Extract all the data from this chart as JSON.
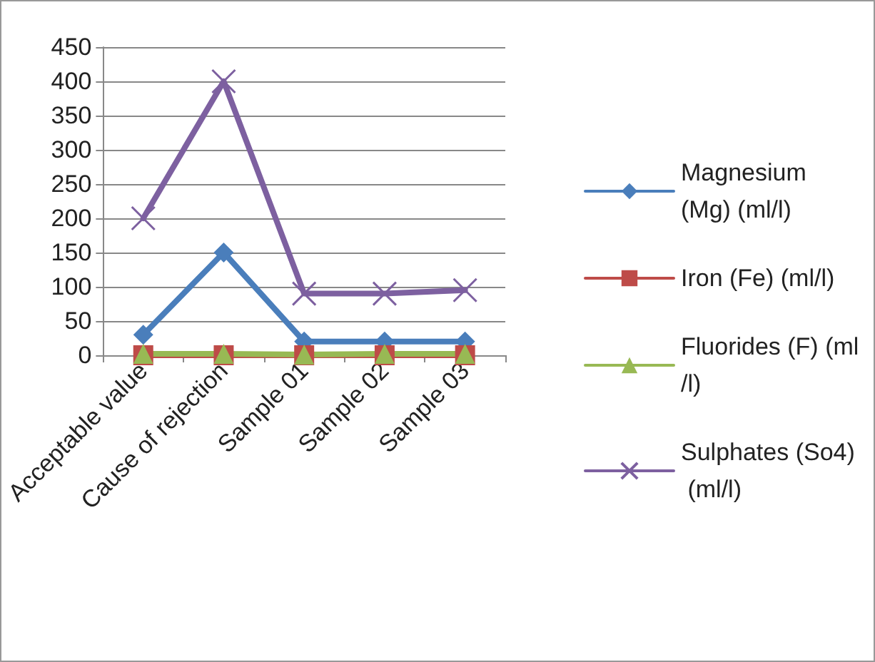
{
  "chart_data": {
    "type": "line",
    "categories": [
      "Acceptable value",
      "Cause of rejection",
      "Sample 01",
      "Sample 02",
      "Sample 03"
    ],
    "series": [
      {
        "name": "Magnesium (Mg) (ml/l)",
        "color": "#4a7ebb",
        "marker": "diamond",
        "values": [
          30,
          150,
          20,
          20,
          20
        ]
      },
      {
        "name": "Iron (Fe) (ml/l)",
        "color": "#be4b48",
        "marker": "square",
        "values": [
          0,
          0,
          0,
          0,
          0
        ]
      },
      {
        "name": "Fluorides (F) (ml/l)",
        "color": "#98b954",
        "marker": "triangle",
        "values": [
          2,
          2,
          1,
          2,
          2
        ]
      },
      {
        "name": "Sulphates (So4) (ml/l)",
        "color": "#7d60a0",
        "marker": "cross",
        "values": [
          200,
          400,
          90,
          90,
          95
        ]
      }
    ],
    "ylim": [
      0,
      450
    ],
    "yticks": [
      0,
      50,
      100,
      150,
      200,
      250,
      300,
      350,
      400,
      450
    ],
    "grid": "y",
    "legend": "right"
  }
}
